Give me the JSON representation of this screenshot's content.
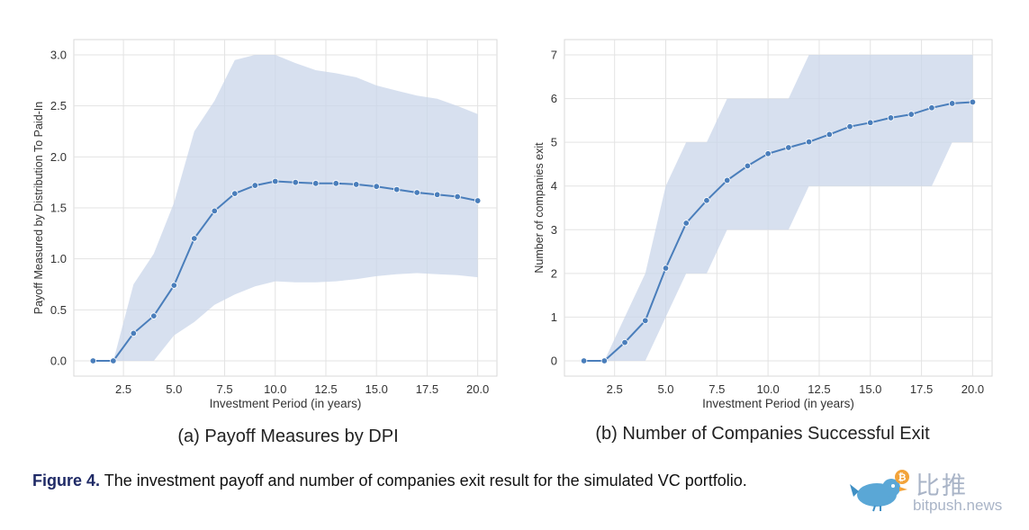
{
  "chart_data": [
    {
      "type": "line",
      "subcaption": "(a) Payoff Measures by DPI",
      "xlabel": "Investment Period (in years)",
      "ylabel": "Payoff Measured by Distribution To Paid-In",
      "xlim": [
        0.05,
        20.95
      ],
      "ylim": [
        -0.15,
        3.15
      ],
      "xticks": [
        2.5,
        5.0,
        7.5,
        10.0,
        12.5,
        15.0,
        17.5,
        20.0
      ],
      "xtick_labels": [
        "2.5",
        "5.0",
        "7.5",
        "10.0",
        "12.5",
        "15.0",
        "17.5",
        "20.0"
      ],
      "yticks": [
        0.0,
        0.5,
        1.0,
        1.5,
        2.0,
        2.5,
        3.0
      ],
      "ytick_labels": [
        "0.0",
        "0.5",
        "1.0",
        "1.5",
        "2.0",
        "2.5",
        "3.0"
      ],
      "grid": true,
      "line_color": "#4a7ebb",
      "band_color": "#c9d5ea",
      "x": [
        1,
        2,
        3,
        4,
        5,
        6,
        7,
        8,
        9,
        10,
        11,
        12,
        13,
        14,
        15,
        16,
        17,
        18,
        19,
        20
      ],
      "values": [
        0.0,
        0.0,
        0.27,
        0.44,
        0.74,
        1.2,
        1.47,
        1.64,
        1.72,
        1.76,
        1.75,
        1.74,
        1.74,
        1.73,
        1.71,
        1.68,
        1.65,
        1.63,
        1.61,
        1.57
      ],
      "band_upper": [
        0.0,
        0.0,
        0.75,
        1.05,
        1.55,
        2.25,
        2.55,
        2.95,
        3.0,
        3.0,
        2.92,
        2.85,
        2.82,
        2.78,
        2.7,
        2.65,
        2.6,
        2.57,
        2.5,
        2.42
      ],
      "band_lower": [
        0.0,
        0.0,
        0.0,
        0.0,
        0.25,
        0.38,
        0.55,
        0.65,
        0.73,
        0.78,
        0.77,
        0.77,
        0.78,
        0.8,
        0.83,
        0.85,
        0.86,
        0.85,
        0.84,
        0.82
      ]
    },
    {
      "type": "line",
      "subcaption": "(b) Number of Companies Successful Exit",
      "xlabel": "Investment Period (in years)",
      "ylabel": "Number of companies exit",
      "xlim": [
        0.05,
        20.95
      ],
      "ylim": [
        -0.35,
        7.35
      ],
      "xticks": [
        2.5,
        5.0,
        7.5,
        10.0,
        12.5,
        15.0,
        17.5,
        20.0
      ],
      "xtick_labels": [
        "2.5",
        "5.0",
        "7.5",
        "10.0",
        "12.5",
        "15.0",
        "17.5",
        "20.0"
      ],
      "yticks": [
        0,
        1,
        2,
        3,
        4,
        5,
        6,
        7
      ],
      "ytick_labels": [
        "0",
        "1",
        "2",
        "3",
        "4",
        "5",
        "6",
        "7"
      ],
      "grid": true,
      "line_color": "#4a7ebb",
      "band_color": "#c9d5ea",
      "x": [
        1,
        2,
        3,
        4,
        5,
        6,
        7,
        8,
        9,
        10,
        11,
        12,
        13,
        14,
        15,
        16,
        17,
        18,
        19,
        20
      ],
      "values": [
        0.0,
        0.0,
        0.42,
        0.92,
        2.12,
        3.15,
        3.67,
        4.13,
        4.46,
        4.74,
        4.88,
        5.01,
        5.18,
        5.36,
        5.45,
        5.56,
        5.64,
        5.79,
        5.89,
        5.92
      ],
      "band_upper": [
        0.0,
        0.0,
        1.0,
        2.0,
        4.0,
        5.0,
        5.0,
        6.0,
        6.0,
        6.0,
        6.0,
        7.0,
        7.0,
        7.0,
        7.0,
        7.0,
        7.0,
        7.0,
        7.0,
        7.0
      ],
      "band_lower": [
        0.0,
        0.0,
        0.0,
        0.0,
        1.0,
        2.0,
        2.0,
        3.0,
        3.0,
        3.0,
        3.0,
        4.0,
        4.0,
        4.0,
        4.0,
        4.0,
        4.0,
        4.0,
        5.0,
        5.0
      ]
    }
  ],
  "caption": {
    "label": "Figure 4.",
    "text": "The investment payoff and number of companies exit result for the simulated VC portfolio."
  },
  "watermark": {
    "chinese": "比推",
    "site": "bitpush.news"
  }
}
